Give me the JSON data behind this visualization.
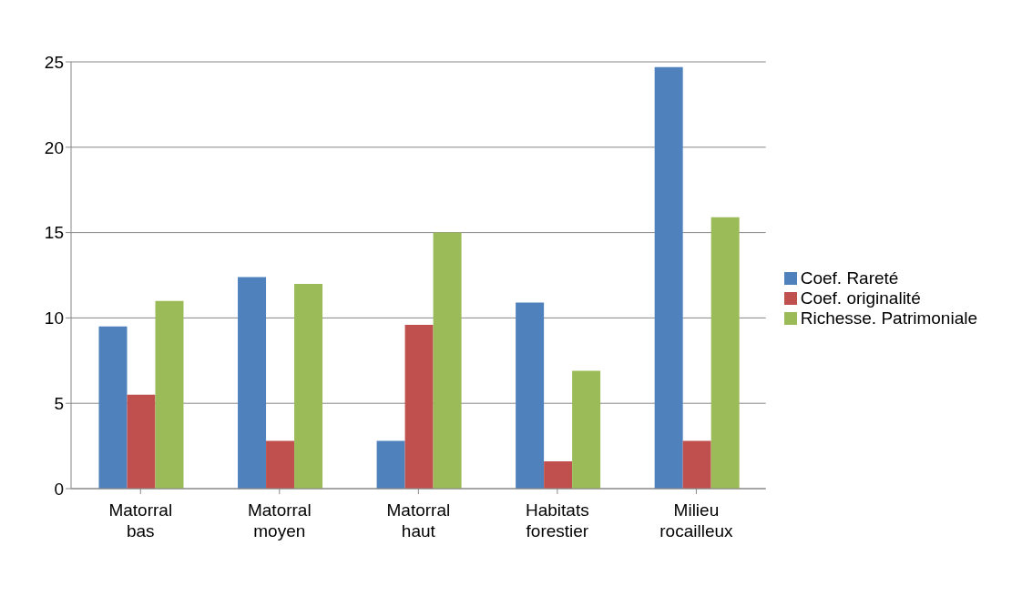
{
  "chart_data": {
    "type": "bar",
    "categories": [
      "Matorral\nbas",
      "Matorral\nmoyen",
      "Matorral\nhaut",
      "Habitats\nforestier",
      "Milieu\nrocailleux"
    ],
    "series": [
      {
        "name": "Coef. Rareté",
        "color": "#4f81bd",
        "values": [
          9.5,
          12.4,
          2.8,
          10.9,
          24.7
        ]
      },
      {
        "name": "Coef. originalité",
        "color": "#c0504d",
        "values": [
          5.5,
          2.8,
          9.6,
          1.6,
          2.8
        ]
      },
      {
        "name": "Richesse. Patrimoniale",
        "color": "#9bbb59",
        "values": [
          11.0,
          12.0,
          15.0,
          6.9,
          15.9
        ]
      }
    ],
    "ylim": [
      0,
      25
    ],
    "yticks": [
      0,
      5,
      10,
      15,
      20,
      25
    ],
    "grid": "y",
    "legend": "right"
  }
}
